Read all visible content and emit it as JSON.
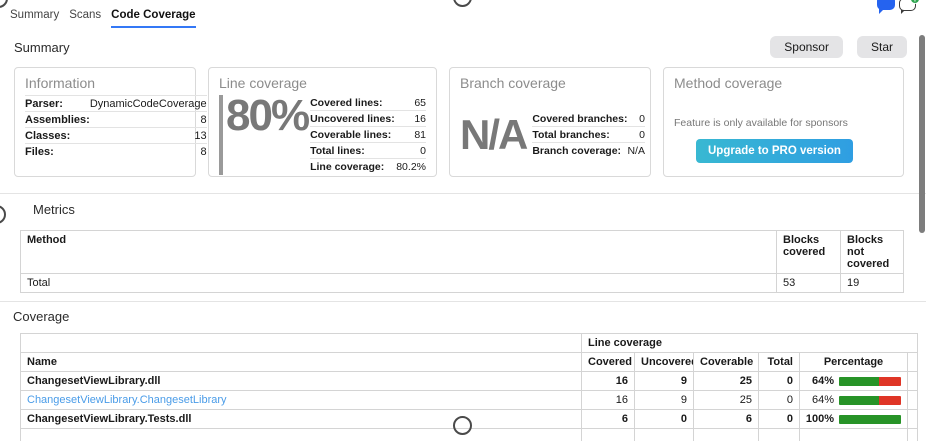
{
  "tabs": [
    {
      "label": "Summary"
    },
    {
      "label": "Scans"
    },
    {
      "label": "Code Coverage"
    }
  ],
  "header_icons": {
    "chat_icon": "chat-bubble",
    "new_chat_icon": "chat-bubble-with-plus",
    "plus_glyph": "+"
  },
  "summary_section": {
    "title": "Summary",
    "sponsor_label": "Sponsor",
    "star_label": "Star",
    "cards": {
      "information": {
        "title": "Information",
        "rows": [
          [
            "Parser:",
            "DynamicCodeCoverage"
          ],
          [
            "Assemblies:",
            "8"
          ],
          [
            "Classes:",
            "13"
          ],
          [
            "Files:",
            "8"
          ]
        ]
      },
      "line_coverage": {
        "title": "Line coverage",
        "big_value": "80%",
        "rows": [
          [
            "Covered lines:",
            "65"
          ],
          [
            "Uncovered lines:",
            "16"
          ],
          [
            "Coverable lines:",
            "81"
          ],
          [
            "Total lines:",
            "0"
          ],
          [
            "Line coverage:",
            "80.2%"
          ]
        ]
      },
      "branch_coverage": {
        "title": "Branch coverage",
        "big_value": "N/A",
        "rows": [
          [
            "Covered branches:",
            "0"
          ],
          [
            "Total branches:",
            "0"
          ],
          [
            "Branch coverage:",
            "N/A"
          ]
        ]
      },
      "method_coverage": {
        "title": "Method coverage",
        "note": "Feature is only available for sponsors",
        "button_label": "Upgrade to PRO version"
      }
    }
  },
  "metrics_section": {
    "title": "Metrics",
    "table": {
      "headers": [
        "Method",
        "Blocks covered",
        "Blocks not covered"
      ],
      "rows": [
        {
          "method": "Total",
          "blocks_covered": "53",
          "blocks_not_covered": "19"
        }
      ]
    }
  },
  "coverage_section": {
    "title": "Coverage",
    "table": {
      "group_header": "Line coverage",
      "headers": [
        "Name",
        "Covered",
        "Uncovered",
        "Coverable",
        "Total",
        "Percentage"
      ],
      "rows": [
        {
          "name": "ChangesetViewLibrary.dll",
          "covered": "16",
          "uncovered": "9",
          "coverable": "25",
          "total": "0",
          "percentage": "64%",
          "pct_value": 64
        },
        {
          "name": "ChangesetViewLibrary.ChangesetLibrary",
          "covered": "16",
          "uncovered": "9",
          "coverable": "25",
          "total": "0",
          "percentage": "64%",
          "pct_value": 64
        },
        {
          "name": "ChangesetViewLibrary.Tests.dll",
          "covered": "6",
          "uncovered": "0",
          "coverable": "6",
          "total": "0",
          "percentage": "100%",
          "pct_value": 100
        }
      ]
    }
  },
  "colors": {
    "accent_blue": "#3478f6",
    "link_blue": "#4a9ce8",
    "bar_green": "#279327",
    "bar_red": "#df3526",
    "button_gradient_start": "#38b8d2",
    "button_gradient_end": "#2f9ee2",
    "chat_icon_blue": "#2563ef",
    "badge_green": "#2da44e",
    "scrollbar_gray": "#7d7d7d"
  }
}
